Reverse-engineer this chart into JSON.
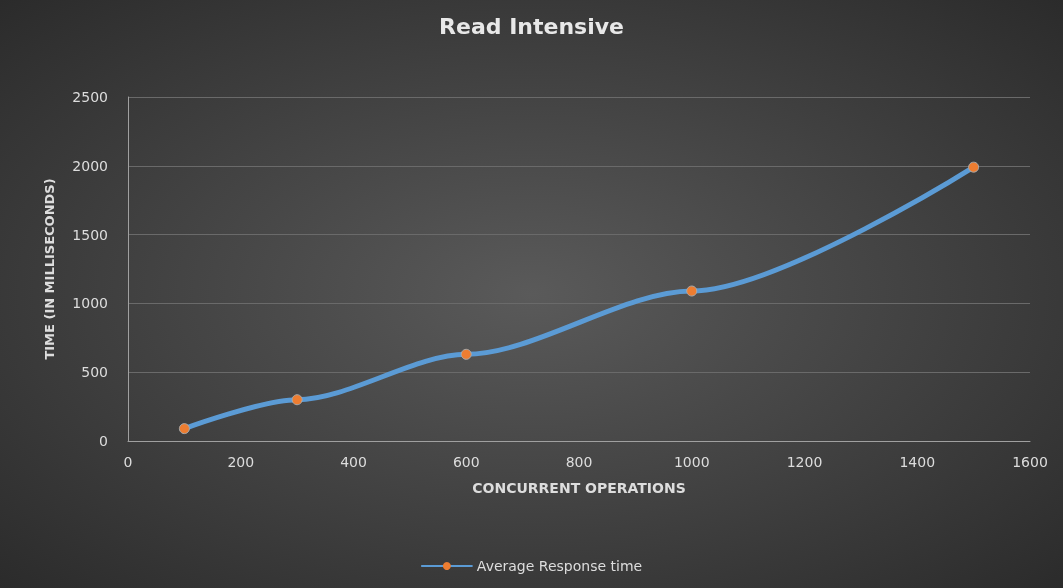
{
  "chart_data": {
    "type": "line",
    "title": "Read Intensive",
    "xlabel": "CONCURRENT OPERATIONS",
    "ylabel": "TIME (IN MILLISECONDS)",
    "x": [
      100,
      300,
      600,
      1000,
      1500
    ],
    "series": [
      {
        "name": "Average Response time",
        "color": "#5b9bd5",
        "colors": [
          "#ed7d31",
          "#ed7d31",
          "#ed7d31",
          "#ed7d31",
          "#ed7d31"
        ],
        "values": [
          90,
          300,
          630,
          1090,
          1990
        ]
      }
    ],
    "xlim": [
      0,
      1600
    ],
    "xticks": [
      0,
      200,
      400,
      600,
      800,
      1000,
      1200,
      1400,
      1600
    ],
    "ylim": [
      0,
      2500
    ],
    "yticks": [
      0,
      500,
      1000,
      1500,
      2000,
      2500
    ],
    "grid": "y",
    "legend": "bottom",
    "marker": "circle",
    "line_style": "solid"
  }
}
